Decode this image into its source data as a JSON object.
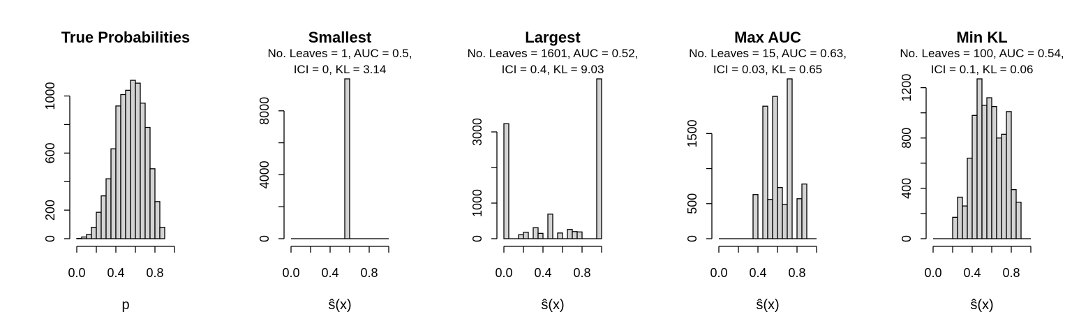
{
  "chart_data": [
    {
      "type": "bar",
      "title": "True Probabilities",
      "subtitle": [],
      "xlabel": "p",
      "ylabel": "",
      "bin_width": 0.05,
      "bin_starts": [
        0,
        0.05,
        0.1,
        0.15,
        0.2,
        0.25,
        0.3,
        0.35,
        0.4,
        0.45,
        0.5,
        0.55,
        0.6,
        0.65,
        0.7,
        0.75,
        0.8,
        0.85,
        0.9,
        0.95
      ],
      "values": [
        2,
        12,
        30,
        80,
        185,
        300,
        420,
        630,
        930,
        1010,
        1040,
        1110,
        1090,
        950,
        780,
        490,
        260,
        80,
        0,
        0
      ],
      "xlim": [
        0,
        1
      ],
      "ylim": [
        0,
        1120
      ],
      "xticks": [
        "0.0",
        "0.4",
        "0.8"
      ],
      "yticks": [
        "0",
        "200",
        "600",
        "1000"
      ]
    },
    {
      "type": "bar",
      "title": "Smallest",
      "subtitle": [
        "No. Leaves = 1, AUC = 0.5,",
        "ICI = 0, KL = 3.14"
      ],
      "xlabel": "ŝ(x)",
      "ylabel": "",
      "bin_width": 0.05,
      "bin_starts": [
        0,
        0.05,
        0.1,
        0.15,
        0.2,
        0.25,
        0.3,
        0.35,
        0.4,
        0.45,
        0.5,
        0.55,
        0.6,
        0.65,
        0.7,
        0.75,
        0.8,
        0.85,
        0.9,
        0.95
      ],
      "values": [
        0,
        0,
        0,
        0,
        0,
        0,
        0,
        0,
        0,
        0,
        0,
        10000,
        0,
        0,
        0,
        0,
        0,
        0,
        0,
        0
      ],
      "xlim": [
        0,
        1
      ],
      "ylim": [
        0,
        10000
      ],
      "xticks": [
        "0.0",
        "0.4",
        "0.8"
      ],
      "yticks": [
        "0",
        "4000",
        "8000"
      ]
    },
    {
      "type": "bar",
      "title": "Largest",
      "subtitle": [
        "No. Leaves = 1601, AUC = 0.52,",
        "ICI = 0.4, KL = 9.03"
      ],
      "xlabel": "ŝ(x)",
      "ylabel": "",
      "bin_width": 0.05,
      "bin_starts": [
        0,
        0.05,
        0.1,
        0.15,
        0.2,
        0.25,
        0.3,
        0.35,
        0.4,
        0.45,
        0.5,
        0.55,
        0.6,
        0.65,
        0.7,
        0.75,
        0.8,
        0.85,
        0.9,
        0.95
      ],
      "values": [
        3230,
        0,
        0,
        110,
        180,
        0,
        310,
        150,
        0,
        690,
        0,
        160,
        0,
        260,
        200,
        190,
        0,
        0,
        0,
        4490
      ],
      "xlim": [
        0,
        1
      ],
      "ylim": [
        0,
        4490
      ],
      "xticks": [
        "0.0",
        "0.4",
        "0.8"
      ],
      "yticks": [
        "0",
        "1000",
        "3000"
      ]
    },
    {
      "type": "bar",
      "title": "Max AUC",
      "subtitle": [
        "No. Leaves = 15, AUC = 0.63,",
        "ICI = 0.03, KL = 0.65"
      ],
      "xlabel": "ŝ(x)",
      "ylabel": "",
      "bin_width": 0.05,
      "bin_starts": [
        0,
        0.05,
        0.1,
        0.15,
        0.2,
        0.25,
        0.3,
        0.35,
        0.4,
        0.45,
        0.5,
        0.55,
        0.6,
        0.65,
        0.7,
        0.75,
        0.8,
        0.85,
        0.9,
        0.95
      ],
      "values": [
        0,
        0,
        0,
        0,
        0,
        0,
        0,
        630,
        0,
        1890,
        560,
        2030,
        730,
        490,
        2280,
        0,
        570,
        780,
        0,
        0
      ],
      "xlim": [
        0,
        1
      ],
      "ylim": [
        0,
        2280
      ],
      "xticks": [
        "0.0",
        "0.4",
        "0.8"
      ],
      "yticks": [
        "0",
        "500",
        "1500"
      ]
    },
    {
      "type": "bar",
      "title": "Min KL",
      "subtitle": [
        "No. Leaves = 100, AUC = 0.54,",
        "ICI = 0.1, KL = 0.06"
      ],
      "xlabel": "ŝ(x)",
      "ylabel": "",
      "bin_width": 0.05,
      "bin_starts": [
        0,
        0.05,
        0.1,
        0.15,
        0.2,
        0.25,
        0.3,
        0.35,
        0.4,
        0.45,
        0.5,
        0.55,
        0.6,
        0.65,
        0.7,
        0.75,
        0.8,
        0.85,
        0.9,
        0.95
      ],
      "values": [
        0,
        0,
        0,
        0,
        170,
        330,
        260,
        640,
        980,
        1270,
        1060,
        1120,
        1050,
        800,
        830,
        1010,
        390,
        290,
        0,
        0
      ],
      "xlim": [
        0,
        1
      ],
      "ylim": [
        0,
        1270
      ],
      "xticks": [
        "0.0",
        "0.4",
        "0.8"
      ],
      "yticks": [
        "0",
        "400",
        "800",
        "1200"
      ]
    }
  ]
}
